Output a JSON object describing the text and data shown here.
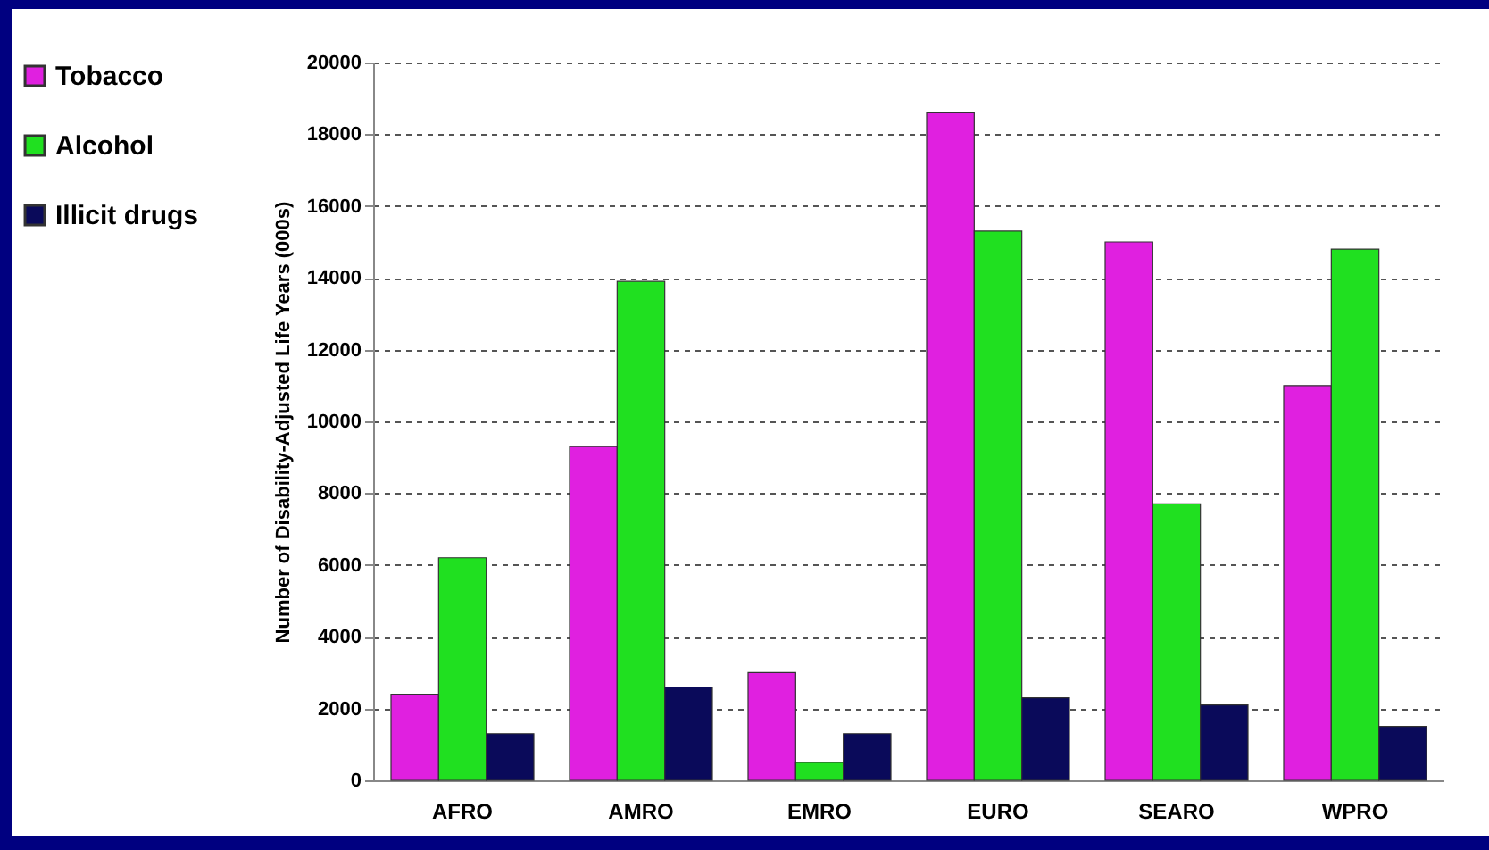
{
  "chart_data": {
    "type": "bar",
    "ylabel": "Number of Disability-Adjusted Life Years (000s)",
    "categories": [
      "AFRO",
      "AMRO",
      "EMRO",
      "EURO",
      "SEARO",
      "WPRO"
    ],
    "series": [
      {
        "name": "Tobacco",
        "color": "#e020e0",
        "values": [
          2400,
          9300,
          3000,
          18600,
          15000,
          11000
        ]
      },
      {
        "name": "Alcohol",
        "color": "#20e020",
        "values": [
          6200,
          13900,
          500,
          15300,
          7700,
          14800
        ]
      },
      {
        "name": "Illicit drugs",
        "color": "#0a0a5a",
        "values": [
          1300,
          2600,
          1300,
          2300,
          2100,
          1500
        ]
      }
    ],
    "ylim": [
      0,
      20000
    ],
    "yticks": [
      0,
      2000,
      4000,
      6000,
      8000,
      10000,
      12000,
      14000,
      16000,
      18000,
      20000
    ],
    "grid": "y",
    "legend": "left"
  }
}
